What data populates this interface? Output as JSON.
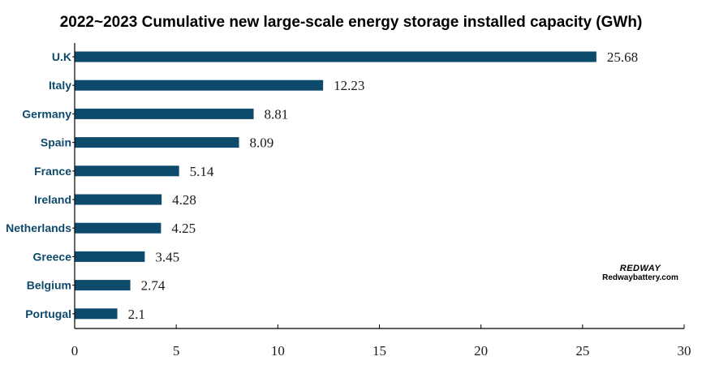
{
  "chart_data": {
    "type": "bar",
    "orientation": "horizontal",
    "title": "2022~2023 Cumulative new large-scale energy storage installed capacity (GWh)",
    "categories": [
      "U.K",
      "Italy",
      "Germany",
      "Spain",
      "France",
      "Ireland",
      "Netherlands",
      "Greece",
      "Belgium",
      "Portugal"
    ],
    "values": [
      25.68,
      12.23,
      8.81,
      8.09,
      5.14,
      4.28,
      4.25,
      3.45,
      2.74,
      2.1
    ],
    "value_labels": [
      "25.68",
      "12.23",
      "8.81",
      "8.09",
      "5.14",
      "4.28",
      "4.25",
      "3.45",
      "2.74",
      "2.1"
    ],
    "xlim": [
      0,
      30
    ],
    "xticks": [
      0,
      5,
      10,
      15,
      20,
      25,
      30
    ],
    "grid": false,
    "legend": "none",
    "bar_color": "#0e4a6b",
    "label_color": "#0e4a6b"
  },
  "watermark": {
    "brand": "REDWAY",
    "site": "Redwaybattery.com"
  }
}
